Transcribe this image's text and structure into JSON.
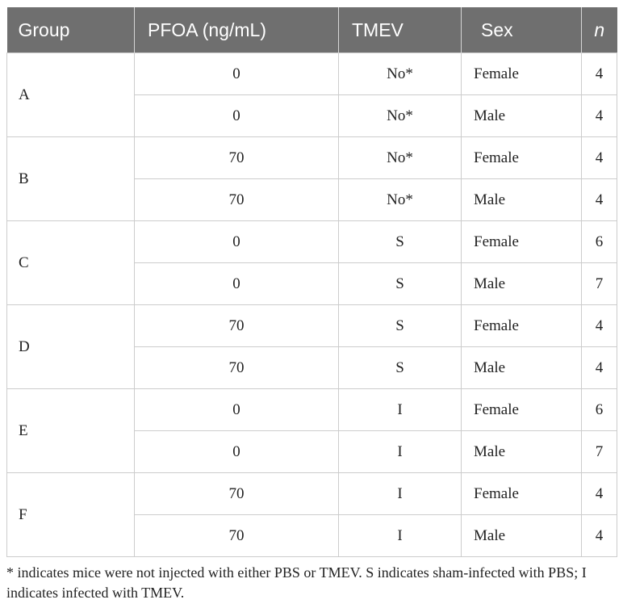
{
  "table": {
    "headers": {
      "group": "Group",
      "pfoa": "PFOA (ng/mL)",
      "tmev": "TMEV",
      "sex": "Sex",
      "n": "n"
    },
    "groups": [
      {
        "label": "A",
        "rows": [
          {
            "pfoa": "0",
            "tmev": "No*",
            "sex": "Female",
            "n": "4"
          },
          {
            "pfoa": "0",
            "tmev": "No*",
            "sex": "Male",
            "n": "4"
          }
        ]
      },
      {
        "label": "B",
        "rows": [
          {
            "pfoa": "70",
            "tmev": "No*",
            "sex": "Female",
            "n": "4"
          },
          {
            "pfoa": "70",
            "tmev": "No*",
            "sex": "Male",
            "n": "4"
          }
        ]
      },
      {
        "label": "C",
        "rows": [
          {
            "pfoa": "0",
            "tmev": "S",
            "sex": "Female",
            "n": "6"
          },
          {
            "pfoa": "0",
            "tmev": "S",
            "sex": "Male",
            "n": "7"
          }
        ]
      },
      {
        "label": "D",
        "rows": [
          {
            "pfoa": "70",
            "tmev": "S",
            "sex": "Female",
            "n": "4"
          },
          {
            "pfoa": "70",
            "tmev": "S",
            "sex": "Male",
            "n": "4"
          }
        ]
      },
      {
        "label": "E",
        "rows": [
          {
            "pfoa": "0",
            "tmev": "I",
            "sex": "Female",
            "n": "6"
          },
          {
            "pfoa": "0",
            "tmev": "I",
            "sex": "Male",
            "n": "7"
          }
        ]
      },
      {
        "label": "F",
        "rows": [
          {
            "pfoa": "70",
            "tmev": "I",
            "sex": "Female",
            "n": "4"
          },
          {
            "pfoa": "70",
            "tmev": "I",
            "sex": "Male",
            "n": "4"
          }
        ]
      }
    ]
  },
  "footnote": "* indicates mice were not injected with either PBS or TMEV. S indicates sham-infected with PBS; I indicates infected with TMEV.",
  "colors": {
    "header_background": "#6f6f6f",
    "header_text": "#ffffff",
    "grid_line": "#cccccc"
  }
}
